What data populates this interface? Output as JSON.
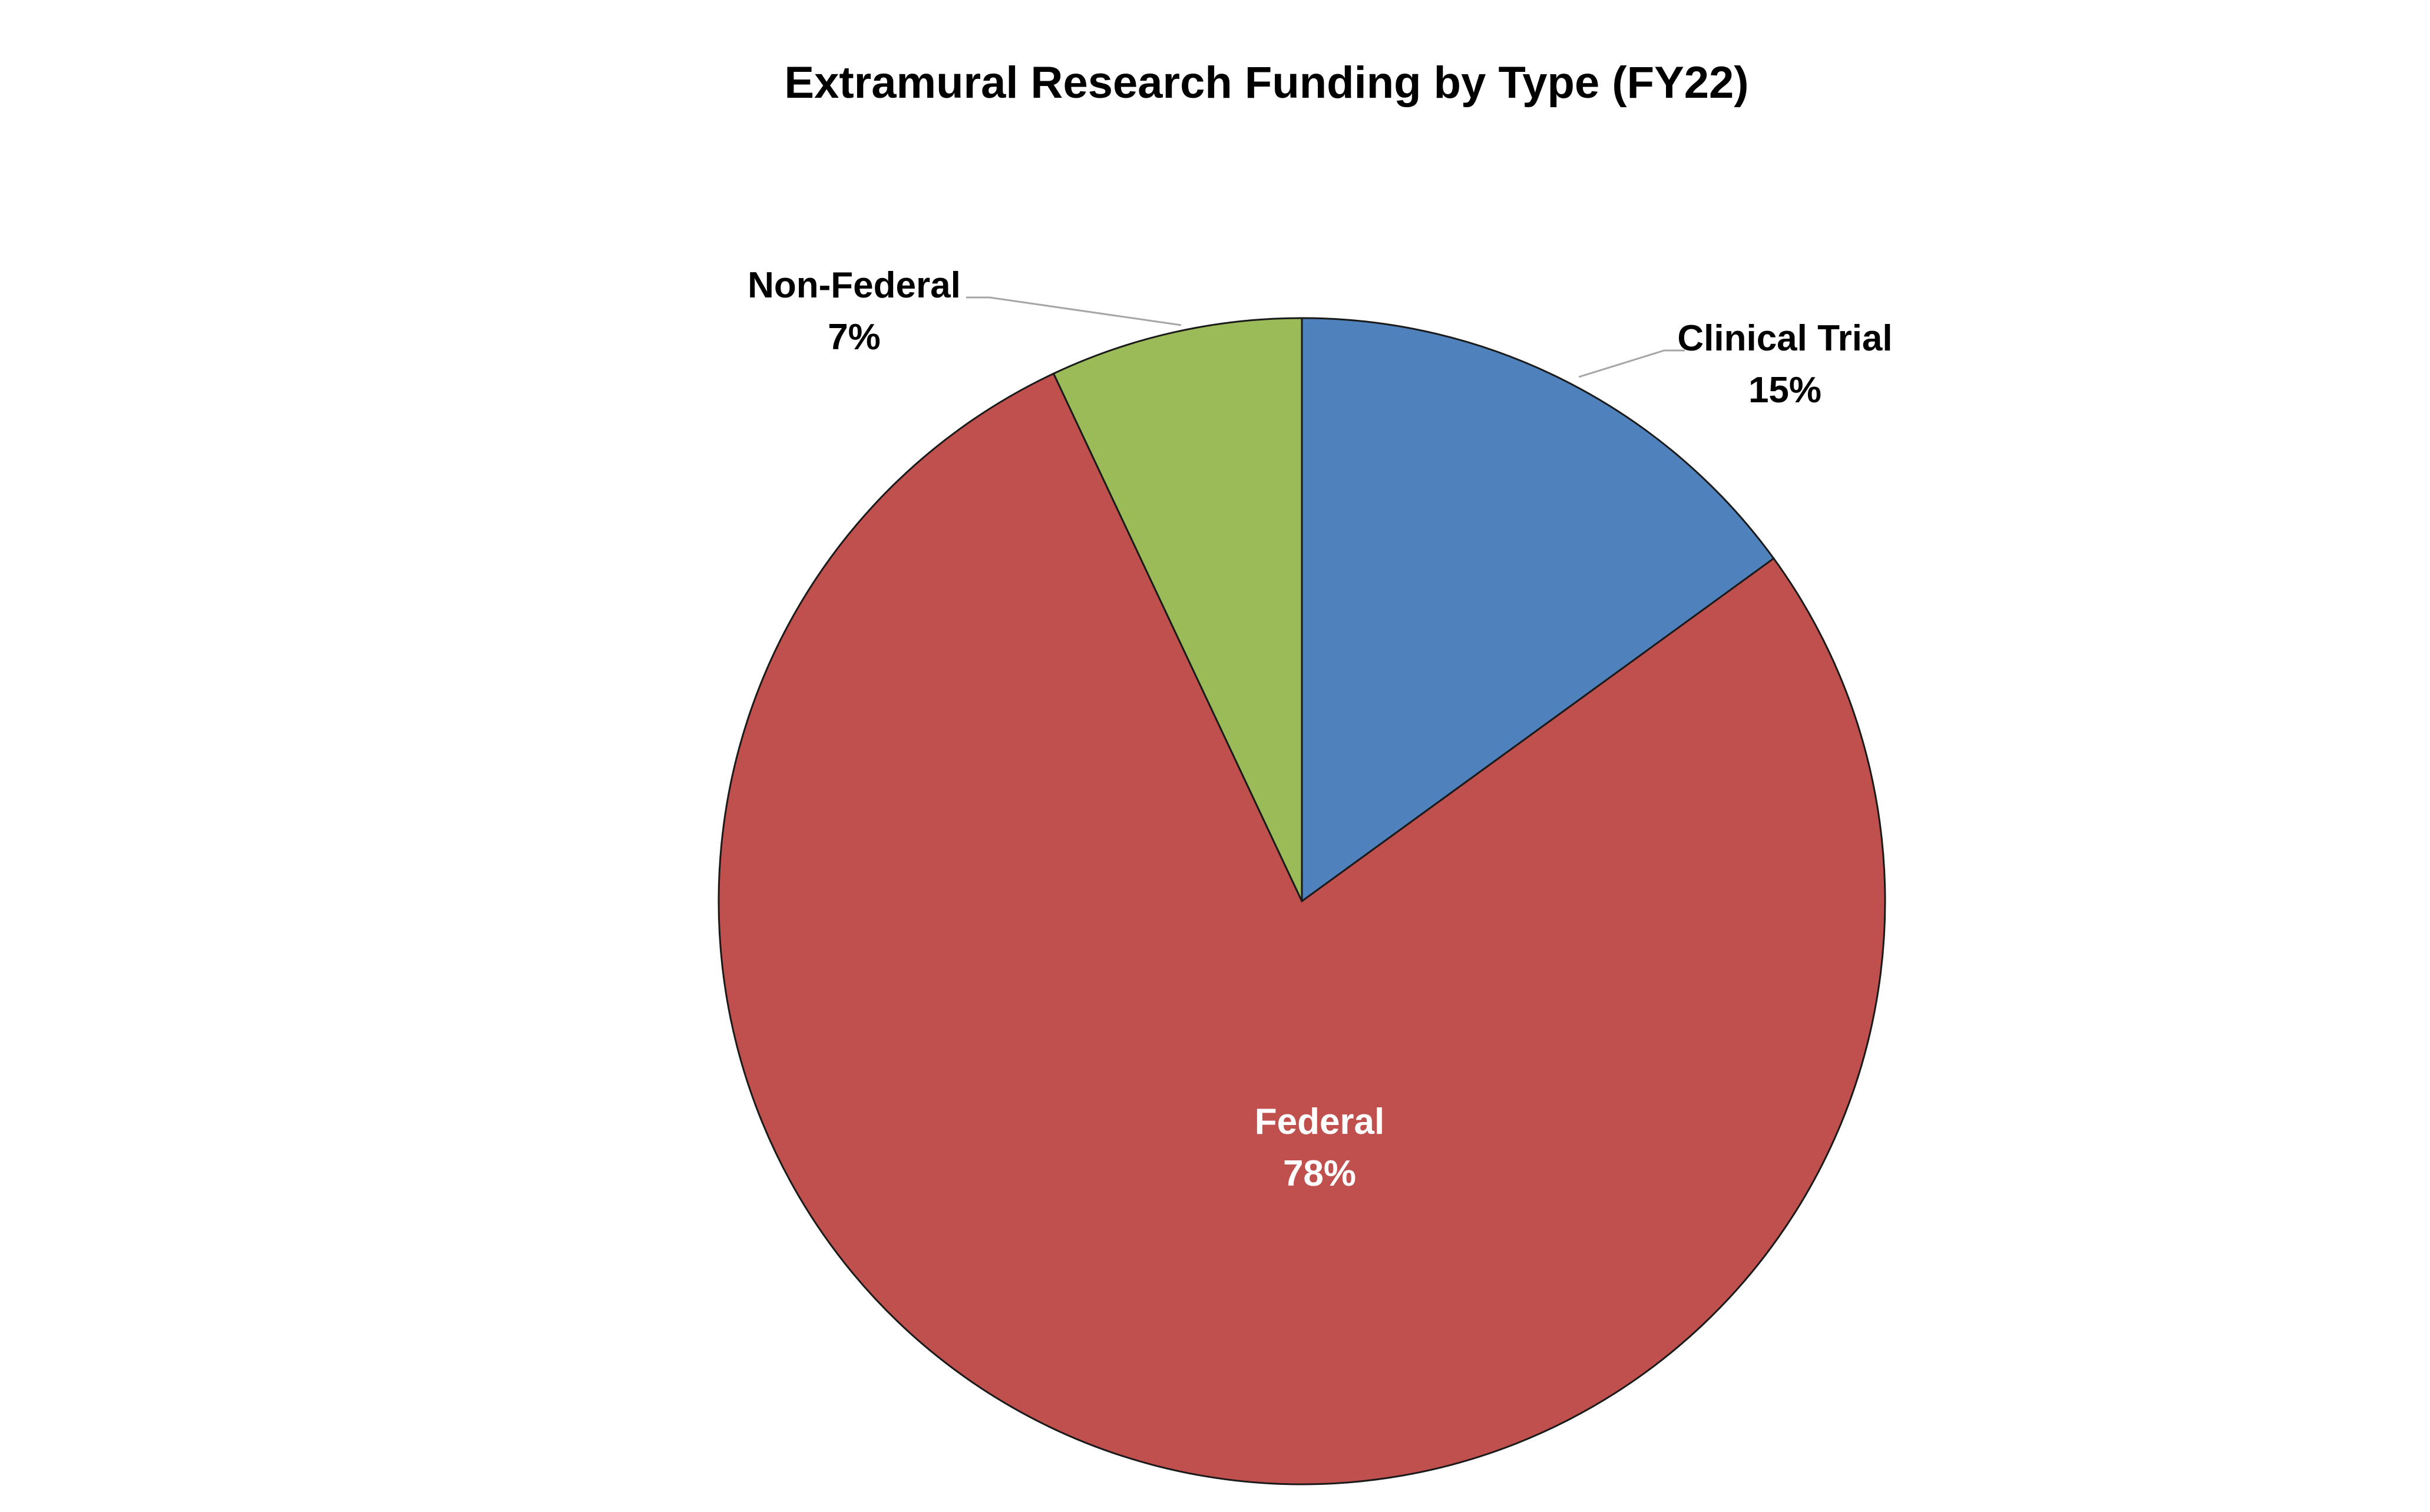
{
  "chart_data": {
    "type": "pie",
    "title": "Extramural Research Funding by Type (FY22)",
    "slices": [
      {
        "label": "Clinical Trial",
        "value": 15,
        "display": "15%",
        "color": "#4F81BD"
      },
      {
        "label": "Federal",
        "value": 78,
        "display": "78%",
        "color": "#C0504D"
      },
      {
        "label": "Non-Federal",
        "value": 7,
        "display": "7%",
        "color": "#9BBB59"
      }
    ],
    "start_angle": "12 o'clock",
    "direction": "clockwise",
    "legend": "none",
    "data_labels": "category name and percentage"
  }
}
